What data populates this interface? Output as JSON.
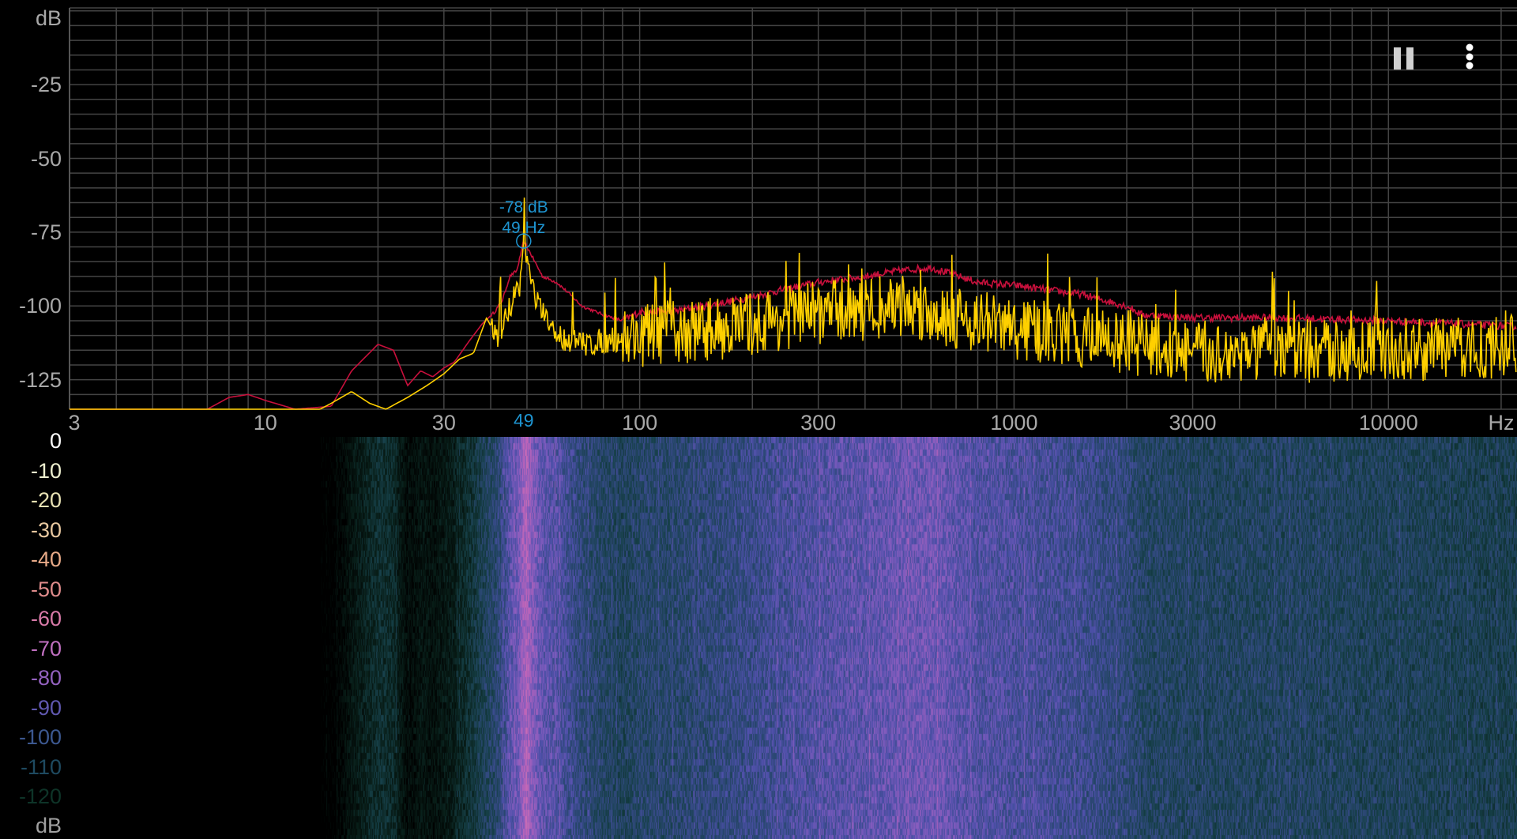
{
  "chart_data": {
    "type": "line",
    "xscale": "log",
    "xlabel": "Hz",
    "ylabel": "dB",
    "xlim": [
      3,
      22050
    ],
    "ylim": [
      -135,
      1
    ],
    "grid": true,
    "x_ticks": [
      "3",
      "10",
      "30",
      "100",
      "300",
      "1000",
      "3000",
      "10000"
    ],
    "x_tick_values": [
      3,
      10,
      30,
      100,
      300,
      1000,
      3000,
      10000
    ],
    "y_ticks": [
      "-25",
      "-50",
      "-75",
      "-100",
      "-125"
    ],
    "y_tick_values": [
      -25,
      -50,
      -75,
      -100,
      -125
    ],
    "series": [
      {
        "color": "#c8103c",
        "points": [
          [
            3,
            -135
          ],
          [
            7,
            -135
          ],
          [
            8,
            -131
          ],
          [
            9,
            -130
          ],
          [
            10,
            -132
          ],
          [
            12,
            -135
          ],
          [
            15,
            -134
          ],
          [
            17,
            -122
          ],
          [
            20,
            -113
          ],
          [
            22,
            -115
          ],
          [
            24,
            -127
          ],
          [
            26,
            -122
          ],
          [
            28,
            -124
          ],
          [
            30,
            -121
          ],
          [
            32,
            -119
          ],
          [
            35,
            -112
          ],
          [
            38,
            -106
          ],
          [
            41,
            -102
          ],
          [
            43,
            -98
          ],
          [
            45,
            -90
          ],
          [
            47,
            -88
          ],
          [
            49,
            -78
          ],
          [
            51,
            -82
          ],
          [
            55,
            -90
          ],
          [
            60,
            -92
          ],
          [
            65,
            -96
          ],
          [
            70,
            -100
          ],
          [
            80,
            -103
          ],
          [
            90,
            -105
          ],
          [
            100,
            -102
          ],
          [
            120,
            -102
          ],
          [
            150,
            -100
          ],
          [
            200,
            -97
          ],
          [
            250,
            -94
          ],
          [
            300,
            -92
          ],
          [
            400,
            -90
          ],
          [
            500,
            -88
          ],
          [
            600,
            -87
          ],
          [
            800,
            -92
          ],
          [
            1000,
            -93
          ],
          [
            1500,
            -96
          ],
          [
            2000,
            -100
          ],
          [
            2200,
            -103
          ],
          [
            3000,
            -104
          ],
          [
            5000,
            -104
          ],
          [
            10000,
            -105
          ],
          [
            15000,
            -106
          ],
          [
            22050,
            -107
          ]
        ]
      },
      {
        "color": "#ffd000",
        "points": [
          [
            3,
            -135
          ],
          [
            14,
            -135
          ],
          [
            15,
            -133
          ],
          [
            17,
            -129
          ],
          [
            19,
            -133
          ],
          [
            21,
            -135
          ],
          [
            24,
            -131
          ],
          [
            27,
            -127
          ],
          [
            30,
            -123
          ],
          [
            33,
            -118
          ],
          [
            36,
            -116
          ],
          [
            39,
            -104
          ],
          [
            42,
            -112
          ],
          [
            45,
            -100
          ],
          [
            48,
            -92
          ],
          [
            49,
            -79
          ],
          [
            52,
            -95
          ],
          [
            56,
            -105
          ],
          [
            60,
            -110
          ],
          [
            70,
            -113
          ],
          [
            80,
            -112
          ],
          [
            100,
            -110
          ],
          [
            150,
            -108
          ],
          [
            200,
            -106
          ],
          [
            300,
            -102
          ],
          [
            500,
            -100
          ],
          [
            800,
            -105
          ],
          [
            1000,
            -108
          ],
          [
            2000,
            -112
          ],
          [
            3000,
            -116
          ],
          [
            10000,
            -115
          ],
          [
            22050,
            -114
          ]
        ]
      }
    ],
    "peak": {
      "freq": 49,
      "db": -78,
      "db_label": "-78 dB",
      "hz_label": "49 Hz",
      "x_marker_label": "49",
      "color": "#1e94d0"
    },
    "spectrogram": {
      "scale_unit": "dB",
      "scale_labels": [
        "0",
        "-10",
        "-20",
        "-30",
        "-40",
        "-50",
        "-60",
        "-70",
        "-80",
        "-90",
        "-100",
        "-110",
        "-120"
      ],
      "scale_colors": [
        "#ffffff",
        "#eef0d0",
        "#e8e2b4",
        "#e8c8a0",
        "#e8aa88",
        "#e08c8c",
        "#d87aa8",
        "#c070c0",
        "#9462c0",
        "#6058b0",
        "#3c5890",
        "#1e4a60",
        "#0e3428"
      ]
    }
  },
  "controls": {
    "pause_icon": "pause-icon",
    "menu_icon": "more-vert-icon"
  },
  "colors": {
    "grid": "#444444",
    "axis_text": "#a8a8a8",
    "background": "#000000"
  }
}
